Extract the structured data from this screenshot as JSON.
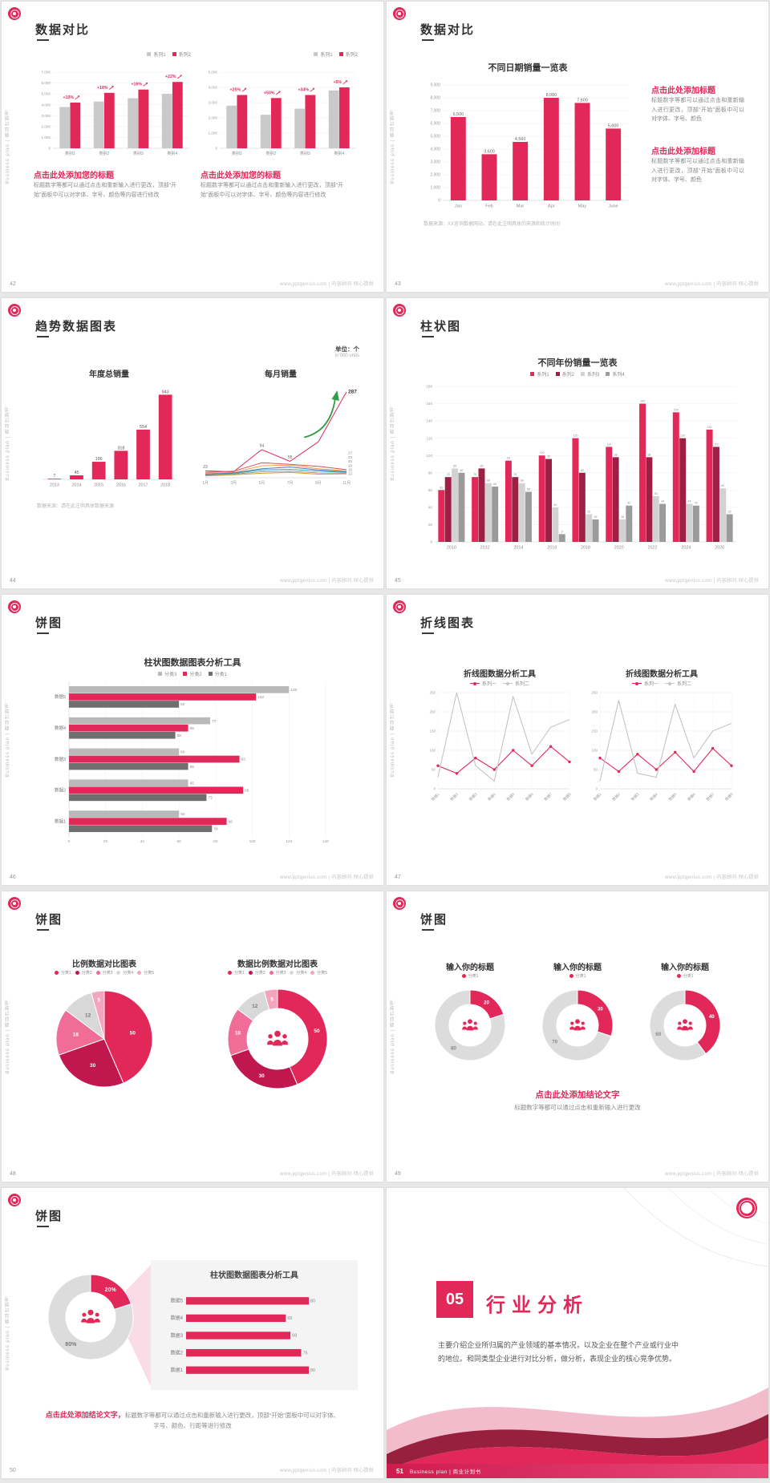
{
  "common": {
    "side_text": "Business plan | 商业计划书",
    "footer": "www.pptgenius.com | 内容顾问·倾心提供",
    "accent": "#e12858"
  },
  "slides": {
    "s42": {
      "page": "42",
      "title": "数据对比",
      "left_heading": "点击此处添加您的标题",
      "left_body": "标题数字等都可以通过点击和重新输入进行更改，顶部“开始”面板中可以对字体、字号、颜色等内容进行修改",
      "right_heading": "点击此处添加您的标题",
      "right_body": "标题数字等都可以通过点击和重新输入进行更改，顶部“开始”面板中可以对字体、字号、颜色等内容进行修改"
    },
    "s43": {
      "page": "43",
      "title": "数据对比",
      "chart_title": "不同日期销量一览表",
      "block1_heading": "点击此处添加标题",
      "block1_body": "标题数字等都可以通过点击和重新输入进行更改，顶部“开始”面板中可以对字体、字号、颜色",
      "block2_heading": "点击此处添加标题",
      "block2_body": "标题数字等都可以通过点击和重新输入进行更改，顶部“开始”面板中可以对字体、字号、颜色",
      "note": "数据来源：XX咨询数据网站，请在此注明具体的来源和统计时间"
    },
    "s44": {
      "page": "44",
      "title": "趋势数据图表",
      "unit_cn": "单位：个",
      "unit_en": "in'000 units",
      "left_chart_title": "年度总销量",
      "right_chart_title": "每月销量",
      "note": "数据来源：请在此注明具体数据来源"
    },
    "s45": {
      "page": "45",
      "title": "柱状图",
      "chart_title": "不同年份销量一览表"
    },
    "s46": {
      "page": "46",
      "title": "饼图",
      "chart_title": "柱状图数据图表分析工具"
    },
    "s47": {
      "page": "47",
      "title": "折线图表",
      "left_chart_title": "折线图数据分析工具",
      "right_chart_title": "折线图数据分析工具"
    },
    "s48": {
      "page": "48",
      "title": "饼图",
      "left_chart_title": "比例数据对比图表",
      "right_chart_title": "数据比例数据对比图表"
    },
    "s49": {
      "page": "49",
      "title": "饼图",
      "col_titles": [
        "输入你的标题",
        "输入你的标题",
        "输入你的标题"
      ],
      "conclusion_heading": "点击此处添加结论文字",
      "conclusion_body": "标题数字等都可以通过点击和重新输入进行更改"
    },
    "s50": {
      "page": "50",
      "title": "饼图",
      "panel_title": "柱状图数据图表分析工具",
      "conclusion_heading": "点击此处添加结论文字，",
      "conclusion_body": "标题数字等都可以通过点击和重新输入进行更改，顶部“开始”面板中可以对字体、字号、颜色、行距等进行修改"
    },
    "s51": {
      "page": "51",
      "number": "05",
      "title": "行业分析",
      "body": "主要介绍企业所归属的产业领域的基本情况，以及企业在整个产业或行业中的地位。和同类型企业进行对比分析，做分析，表现企业的核心竞争优势。",
      "footer": "Business plan | 商业计划书"
    }
  },
  "chart_data": {
    "s42_left": {
      "type": "bar",
      "categories": [
        "类别1",
        "类别2",
        "类别3",
        "类别4"
      ],
      "series": [
        {
          "name": "系列1",
          "color": "#c9c9c9",
          "values": [
            3800,
            4300,
            4600,
            5000
          ]
        },
        {
          "name": "系列2",
          "color": "#e12858",
          "values": [
            4200,
            5100,
            5400,
            6100
          ]
        }
      ],
      "annotations": [
        "+10%",
        "+18%",
        "+16%",
        "+22%"
      ],
      "ylim": [
        0,
        7000
      ],
      "ytick_step": 1000
    },
    "s42_right": {
      "type": "bar",
      "categories": [
        "类别1",
        "类别2",
        "类别3",
        "类别4"
      ],
      "series": [
        {
          "name": "系列1",
          "color": "#c9c9c9",
          "values": [
            2800,
            2200,
            2600,
            3800
          ]
        },
        {
          "name": "系列2",
          "color": "#e12858",
          "values": [
            3500,
            3300,
            3500,
            4000
          ]
        }
      ],
      "annotations": [
        "+25%",
        "+50%",
        "+34%",
        "+5%"
      ],
      "ylim": [
        0,
        5000
      ],
      "ytick_step": 1000
    },
    "s43": {
      "type": "bar",
      "title": "不同日期销量一览表",
      "categories": [
        "Jan",
        "Feb",
        "Mar",
        "Apr",
        "May",
        "June"
      ],
      "series": [
        {
          "name": "销量",
          "color": "#e12858",
          "values": [
            6500,
            3600,
            4560,
            8000,
            7600,
            5600
          ]
        }
      ],
      "labels": [
        "6,500",
        "3,600",
        "4,560",
        "8,000",
        "7,600",
        "5,600"
      ],
      "ylim": [
        0,
        9000
      ],
      "ytick_step": 1000
    },
    "s44_bar": {
      "type": "bar",
      "title": "年度总销量",
      "categories": [
        "2013",
        "2014",
        "2015",
        "2016",
        "2017",
        "2018"
      ],
      "series": [
        {
          "name": "年度总销量",
          "color": "#e12858",
          "values": [
            7,
            45,
            196,
            318,
            554,
            943
          ]
        }
      ],
      "ylim": [
        0,
        1000
      ]
    },
    "s44_line": {
      "type": "line",
      "title": "每月销量",
      "x": [
        "1月",
        "3月",
        "5月",
        "7月",
        "9月",
        "11月"
      ],
      "series": [
        {
          "name": "系列1",
          "color": "#e12858",
          "values": [
            23,
            20,
            94,
            55,
            120,
            287
          ],
          "end_label": "287",
          "emphasis": true
        },
        {
          "name": "系列2",
          "color": "#d9534f",
          "values": [
            18,
            22,
            50,
            45,
            38,
            27
          ],
          "end_label": "27"
        },
        {
          "name": "系列3",
          "color": "#f0a150",
          "values": [
            15,
            18,
            40,
            42,
            30,
            23
          ],
          "end_label": "23"
        },
        {
          "name": "系列4",
          "color": "#4a78b8",
          "values": [
            12,
            16,
            30,
            36,
            26,
            20
          ],
          "end_label": "20"
        },
        {
          "name": "系列5",
          "color": "#3aa9a0",
          "values": [
            10,
            14,
            26,
            28,
            22,
            18
          ],
          "end_label": "18"
        },
        {
          "name": "系列6",
          "color": "#9b9b9b",
          "values": [
            8,
            12,
            20,
            22,
            16,
            15
          ],
          "end_label": "15"
        },
        {
          "name": "系列7",
          "color": "#c9a227",
          "values": [
            6,
            10,
            15,
            18,
            12,
            13
          ],
          "end_label": "13"
        }
      ],
      "annotations": [
        {
          "xi": 0,
          "v": 23,
          "label": "23"
        },
        {
          "xi": 2,
          "v": 94,
          "label": "94"
        },
        {
          "xi": 3,
          "v": 55,
          "label": "55"
        }
      ],
      "ylim": [
        0,
        300
      ]
    },
    "s45": {
      "type": "bar",
      "title": "不同年份销量一览表",
      "categories": [
        "2010",
        "2012",
        "2014",
        "2016",
        "2018",
        "2020",
        "2022",
        "2024",
        "2026"
      ],
      "series": [
        {
          "name": "系列1",
          "color": "#e12858",
          "values": [
            60,
            75,
            94,
            100,
            120,
            110,
            160,
            150,
            130
          ]
        },
        {
          "name": "系列2",
          "color": "#9e1f44",
          "values": [
            75,
            85,
            75,
            96,
            80,
            98,
            98,
            120,
            110
          ]
        },
        {
          "name": "系列3",
          "color": "#d2d2d2",
          "values": [
            85,
            68,
            68,
            40,
            32,
            26,
            53,
            44,
            62
          ]
        },
        {
          "name": "系列4",
          "color": "#9b9b9b",
          "values": [
            80,
            64,
            58,
            9,
            26,
            42,
            44,
            42,
            32
          ]
        }
      ],
      "ylim": [
        0,
        180
      ],
      "ytick_step": 20
    },
    "s46": {
      "type": "hbar",
      "title": "柱状图数据图表分析工具",
      "categories": [
        "数据5",
        "数据4",
        "数据3",
        "数据2",
        "数据1"
      ],
      "series": [
        {
          "name": "分类3",
          "color": "#b9b9b9",
          "values": [
            120,
            77,
            60,
            65,
            60
          ]
        },
        {
          "name": "分类2",
          "color": "#e12858",
          "values": [
            102,
            65,
            93,
            95,
            86
          ]
        },
        {
          "name": "分类1",
          "color": "#6f6f6f",
          "values": [
            60,
            58,
            65,
            75,
            78
          ]
        }
      ],
      "xlim": [
        0,
        140
      ],
      "xtick_step": 20
    },
    "s47_left": {
      "type": "line",
      "title": "折线图数据分析工具",
      "x": [
        "数据1",
        "数据2",
        "数据3",
        "数据4",
        "数据5",
        "数据6",
        "数据7",
        "数据8"
      ],
      "series": [
        {
          "name": "系列一",
          "color": "#e12858",
          "values": [
            60,
            40,
            80,
            50,
            100,
            60,
            110,
            70
          ],
          "dots": true
        },
        {
          "name": "系列二",
          "color": "#c4c4c4",
          "values": [
            30,
            250,
            60,
            20,
            240,
            90,
            160,
            180
          ]
        }
      ],
      "ylim": [
        0,
        250
      ],
      "ytick_step": 50
    },
    "s47_right": {
      "type": "line",
      "title": "折线图数据分析工具",
      "x": [
        "数据1",
        "数据2",
        "数据3",
        "数据4",
        "数据5",
        "数据6",
        "数据7",
        "数据8"
      ],
      "series": [
        {
          "name": "系列一",
          "color": "#e12858",
          "values": [
            80,
            45,
            90,
            50,
            95,
            45,
            105,
            60
          ],
          "dots": true
        },
        {
          "name": "系列二",
          "color": "#c4c4c4",
          "values": [
            20,
            230,
            40,
            30,
            220,
            80,
            150,
            170
          ]
        }
      ],
      "ylim": [
        0,
        250
      ],
      "ytick_step": 50
    },
    "s48_left": {
      "type": "pie",
      "title": "比例数据对比图表",
      "legend": [
        "分类1",
        "分类2",
        "分类3",
        "分类4",
        "分类5"
      ],
      "values": [
        50,
        30,
        18,
        12,
        5
      ],
      "labels": [
        "50",
        "30",
        "18",
        "12",
        "5"
      ],
      "colors": [
        "#e12858",
        "#c0174f",
        "#ef6d96",
        "#d8d8d8",
        "#f3a5bd"
      ],
      "labelColors": [
        "#fff",
        "#fff",
        "#fff",
        "#777",
        "#fff"
      ]
    },
    "s48_right": {
      "type": "donut",
      "title": "数据比例数据对比图表",
      "legend": [
        "分类1",
        "分类2",
        "分类3",
        "分类4",
        "分类5"
      ],
      "values": [
        50,
        30,
        18,
        12,
        5
      ],
      "labels": [
        "50",
        "30",
        "18",
        "12",
        "5"
      ],
      "colors": [
        "#e12858",
        "#c0174f",
        "#ef6d96",
        "#d8d8d8",
        "#f3a5bd"
      ],
      "labelColors": [
        "#fff",
        "#fff",
        "#fff",
        "#777",
        "#fff"
      ]
    },
    "s49_1": {
      "type": "donut",
      "title": "输入你的标题",
      "legend": "分类1",
      "values": [
        20,
        80
      ],
      "labels": [
        "20",
        "80"
      ],
      "colors": [
        "#e12858",
        "#dcdcdc"
      ],
      "labelColors": [
        "#fff",
        "#888"
      ]
    },
    "s49_2": {
      "type": "donut",
      "title": "输入你的标题",
      "legend": "分类1",
      "values": [
        30,
        70
      ],
      "labels": [
        "30",
        "70"
      ],
      "colors": [
        "#e12858",
        "#dcdcdc"
      ],
      "labelColors": [
        "#fff",
        "#888"
      ]
    },
    "s49_3": {
      "type": "donut",
      "title": "输入你的标题",
      "legend": "分类1",
      "values": [
        40,
        60
      ],
      "labels": [
        "40",
        "60"
      ],
      "colors": [
        "#e12858",
        "#dcdcdc"
      ],
      "labelColors": [
        "#fff",
        "#888"
      ]
    },
    "s50_donut": {
      "type": "donut",
      "values": [
        20,
        80
      ],
      "labels": [
        "20%",
        "80%"
      ],
      "colors": [
        "#e12858",
        "#dcdcdc"
      ],
      "labelColors": [
        "#fff",
        "#777"
      ]
    },
    "s50_bars": {
      "type": "hbar",
      "title": "柱状图数据图表分析工具",
      "categories": [
        "数据5",
        "数据4",
        "数据3",
        "数据2",
        "数据1"
      ],
      "values": [
        80,
        65,
        68,
        75,
        80
      ],
      "xlim": [
        0,
        92
      ]
    }
  }
}
